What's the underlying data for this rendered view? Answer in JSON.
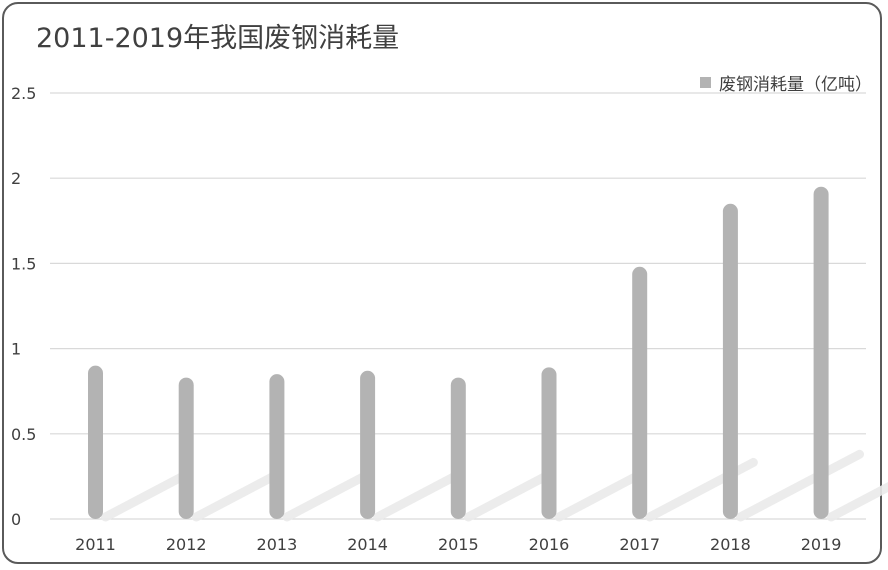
{
  "chart_data": {
    "type": "bar",
    "title": "2011-2019年我国废钢消耗量",
    "categories": [
      "2011",
      "2012",
      "2013",
      "2014",
      "2015",
      "2016",
      "2017",
      "2018",
      "2019"
    ],
    "series": [
      {
        "name": "废钢消耗量（亿吨）",
        "values": [
          0.9,
          0.83,
          0.85,
          0.87,
          0.83,
          0.89,
          1.48,
          1.85,
          1.95
        ]
      }
    ],
    "yticks": [
      "0",
      "0.5",
      "1",
      "1.5",
      "2",
      "2.5"
    ],
    "ylim": [
      0,
      2.5
    ],
    "grid": true,
    "legend_position": "top-right",
    "bar_color": "#b3b3b3",
    "grid_color": "#d9d9d9"
  }
}
